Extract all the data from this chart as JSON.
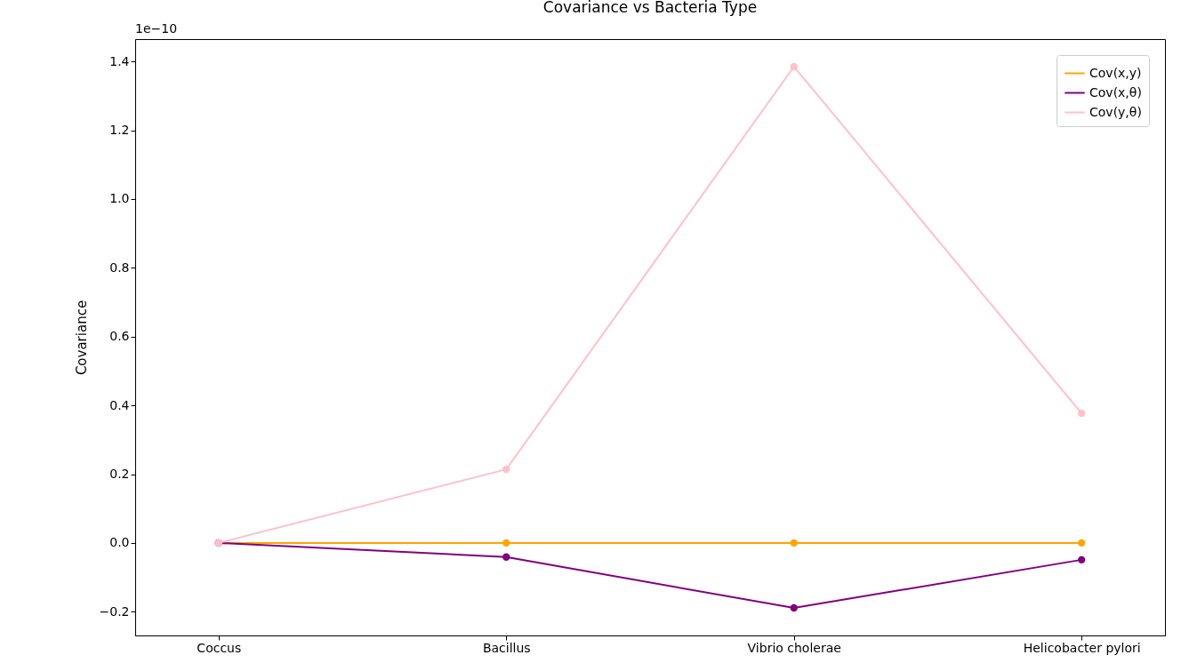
{
  "chart_data": {
    "type": "line",
    "title": "Covariance vs Bacteria Type",
    "ylabel": "Covariance",
    "categories": [
      "Coccus",
      "Bacillus",
      "Vibrio cholerae",
      "Helicobacter pylori"
    ],
    "series": [
      {
        "name": "Cov(x,y)",
        "color": "#ffa500",
        "values": [
          0,
          0,
          0,
          0
        ]
      },
      {
        "name": "Cov(x,θ)",
        "color": "#800080",
        "values": [
          0,
          -0.041,
          -0.189,
          -0.049
        ]
      },
      {
        "name": "Cov(y,θ)",
        "color": "#ffc0cb",
        "values": [
          0,
          0.214,
          1.385,
          0.377
        ]
      }
    ],
    "ylim": [
      -0.269,
      1.465
    ],
    "yticks": [
      -0.2,
      {
        "value": 0,
        "label": "0.0"
      },
      0.2,
      0.4,
      0.6,
      0.8,
      {
        "value": 1,
        "label": "1.0"
      },
      1.2,
      1.4
    ],
    "annotations": [
      "1e−10"
    ],
    "grid": false,
    "legend": "top right",
    "marker": "circle",
    "line_style": "solid"
  }
}
